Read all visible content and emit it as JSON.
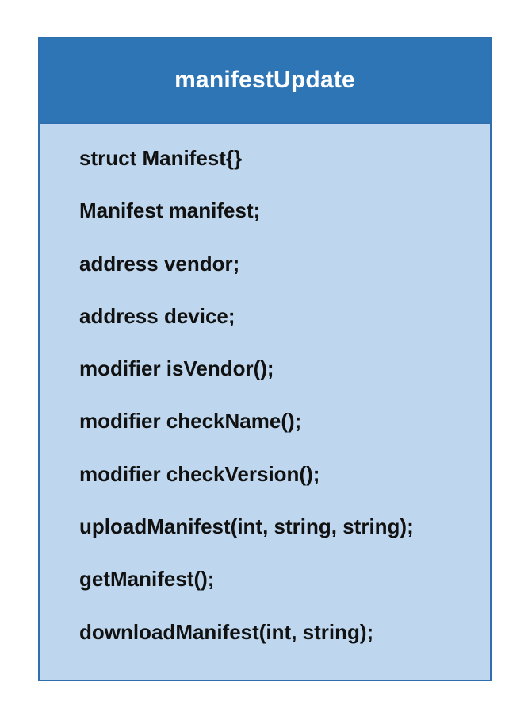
{
  "diagram": {
    "class_name": "manifestUpdate",
    "members": [
      "struct Manifest{}",
      "Manifest manifest;",
      "address vendor;",
      "address device;",
      "modifier isVendor();",
      "modifier checkName();",
      "modifier checkVersion();",
      "uploadManifest(int, string, string);",
      "getManifest();",
      "downloadManifest(int, string);"
    ]
  },
  "colors": {
    "header_fill": "#2e75b6",
    "body_fill": "#bed7ee",
    "border": "#2f6fb0",
    "title_text": "#ffffff",
    "member_text": "#111111"
  }
}
